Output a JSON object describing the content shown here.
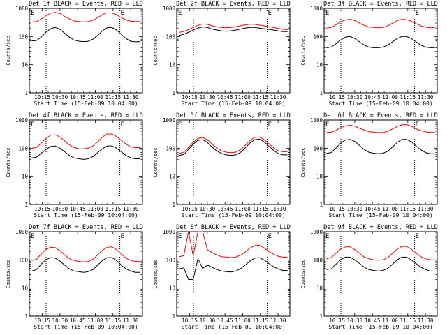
{
  "chart_data": [
    {
      "type": "line",
      "title": "Det 1f BLACK = Events, RED = LLD",
      "xlabel": "Start Time (15-Feb-09 10:04:00)",
      "ylabel": "Counts/sec",
      "x_ticks": [
        "10:15",
        "10:30",
        "10:45",
        "11:00",
        "11:15",
        "11:30"
      ],
      "y_ticks": [
        "1",
        "10",
        "100",
        "1000"
      ],
      "ylim": [
        1,
        1000
      ],
      "xlim": [
        "10:04",
        "11:40"
      ],
      "scale_y": "log",
      "annotations": [
        "E",
        "E"
      ],
      "series": [
        {
          "color": "#000000",
          "values": [
            70,
            72,
            95,
            140,
            190,
            210,
            180,
            130,
            95,
            75,
            68,
            66,
            68,
            80,
            110,
            160,
            205,
            210,
            170,
            120,
            85,
            68,
            65,
            66
          ]
        },
        {
          "color": "#ff0000",
          "values": [
            330,
            340,
            420,
            540,
            680,
            720,
            650,
            520,
            420,
            360,
            340,
            330,
            340,
            380,
            470,
            600,
            700,
            690,
            590,
            470,
            390,
            350,
            340,
            345
          ]
        }
      ]
    },
    {
      "type": "line",
      "title": "Det 2f BLACK = Events, RED = LLD",
      "xlabel": "Start Time (15-Feb-09 10:04:00)",
      "ylabel": "Counts/sec",
      "x_ticks": [
        "10:15",
        "10:30",
        "10:45",
        "11:00",
        "11:15",
        "11:30"
      ],
      "y_ticks": [
        "1",
        "10",
        "100",
        "1000"
      ],
      "ylim": [
        1,
        1000
      ],
      "xlim": [
        "10:04",
        "11:40"
      ],
      "scale_y": "log",
      "annotations": [
        "E",
        "E"
      ],
      "series": [
        {
          "color": "#000000",
          "values": [
            110,
            120,
            140,
            170,
            200,
            220,
            210,
            185,
            170,
            160,
            155,
            160,
            170,
            185,
            200,
            210,
            210,
            200,
            190,
            180,
            170,
            160,
            150,
            150
          ]
        },
        {
          "color": "#ff0000",
          "values": [
            140,
            150,
            175,
            210,
            250,
            280,
            270,
            240,
            220,
            210,
            205,
            210,
            220,
            240,
            260,
            275,
            270,
            255,
            240,
            225,
            210,
            195,
            180,
            175
          ]
        }
      ]
    },
    {
      "type": "line",
      "title": "Det 3f BLACK = Events, RED = LLD",
      "xlabel": "Start Time (15-Feb-09 10:04:00)",
      "ylabel": "Counts/sec",
      "x_ticks": [
        "10:15",
        "10:30",
        "10:45",
        "11:00",
        "11:15",
        "11:30"
      ],
      "y_ticks": [
        "1",
        "10",
        "100",
        "1000"
      ],
      "ylim": [
        1,
        1000
      ],
      "xlim": [
        "10:04",
        "11:40"
      ],
      "scale_y": "log",
      "annotations": [
        "E",
        "E"
      ],
      "series": [
        {
          "color": "#000000",
          "values": [
            40,
            42,
            55,
            75,
            95,
            100,
            85,
            65,
            50,
            42,
            40,
            40,
            42,
            50,
            65,
            85,
            100,
            100,
            85,
            65,
            50,
            42,
            40,
            40
          ]
        },
        {
          "color": "#ff0000",
          "values": [
            200,
            210,
            260,
            330,
            390,
            410,
            370,
            300,
            250,
            220,
            210,
            205,
            210,
            240,
            300,
            370,
            410,
            400,
            350,
            290,
            240,
            215,
            205,
            210
          ]
        }
      ]
    },
    {
      "type": "line",
      "title": "Det 4f BLACK = Events, RED = LLD",
      "xlabel": "Start Time (15-Feb-09 10:04:00)",
      "ylabel": "Counts/sec",
      "x_ticks": [
        "10:15",
        "10:30",
        "10:45",
        "11:00",
        "11:15",
        "11:30"
      ],
      "y_ticks": [
        "1",
        "10",
        "100",
        "1000"
      ],
      "ylim": [
        1,
        1000
      ],
      "xlim": [
        "10:04",
        "11:40"
      ],
      "scale_y": "log",
      "annotations": [
        "E",
        "E"
      ],
      "series": [
        {
          "color": "#000000",
          "values": [
            45,
            48,
            65,
            90,
            115,
            120,
            100,
            75,
            55,
            45,
            42,
            40,
            42,
            50,
            70,
            95,
            120,
            120,
            100,
            75,
            55,
            45,
            42,
            42
          ]
        },
        {
          "color": "#ff0000",
          "values": [
            100,
            105,
            150,
            220,
            290,
            300,
            250,
            180,
            130,
            105,
            95,
            95,
            100,
            120,
            170,
            250,
            320,
            320,
            260,
            190,
            140,
            110,
            105,
            105
          ]
        }
      ]
    },
    {
      "type": "line",
      "title": "Det 5f BLACK = Events, RED = LLD",
      "xlabel": "Start Time (15-Feb-09 10:04:00)",
      "ylabel": "Counts/sec",
      "x_ticks": [
        "10:15",
        "10:30",
        "10:45",
        "11:00",
        "11:15",
        "11:30"
      ],
      "y_ticks": [
        "1",
        "10",
        "100",
        "1000"
      ],
      "ylim": [
        1,
        1000
      ],
      "xlim": [
        "10:04",
        "11:40"
      ],
      "scale_y": "log",
      "annotations": [
        "E",
        "E"
      ],
      "series": [
        {
          "color": "#000000",
          "values": [
            55,
            60,
            90,
            140,
            190,
            200,
            160,
            110,
            80,
            65,
            58,
            55,
            58,
            70,
            100,
            150,
            200,
            210,
            170,
            120,
            85,
            65,
            58,
            58
          ]
        },
        {
          "color": "#ff0000",
          "values": [
            65,
            72,
            105,
            165,
            220,
            240,
            200,
            140,
            100,
            80,
            72,
            70,
            72,
            88,
            125,
            185,
            240,
            250,
            205,
            145,
            105,
            82,
            75,
            75
          ]
        }
      ]
    },
    {
      "type": "line",
      "title": "Det 6f BLACK = Events, RED = LLD",
      "xlabel": "Start Time (15-Feb-09 10:04:00)",
      "ylabel": "Counts/sec",
      "x_ticks": [
        "10:15",
        "10:30",
        "10:45",
        "11:00",
        "11:15",
        "11:30"
      ],
      "y_ticks": [
        "1",
        "10",
        "100",
        "1000"
      ],
      "ylim": [
        1,
        1000
      ],
      "xlim": [
        "10:04",
        "11:40"
      ],
      "scale_y": "log",
      "annotations": [
        "E",
        "E"
      ],
      "series": [
        {
          "color": "#000000",
          "values": [
            65,
            70,
            100,
            150,
            195,
            205,
            175,
            125,
            90,
            72,
            66,
            64,
            66,
            78,
            110,
            160,
            205,
            205,
            170,
            120,
            88,
            70,
            64,
            64
          ]
        },
        {
          "color": "#ff0000",
          "values": [
            360,
            370,
            430,
            530,
            620,
            650,
            600,
            510,
            440,
            390,
            370,
            360,
            365,
            400,
            480,
            590,
            680,
            690,
            600,
            490,
            420,
            380,
            365,
            365
          ]
        }
      ]
    },
    {
      "type": "line",
      "title": "Det 7f BLACK = Events, RED = LLD",
      "xlabel": "Start Time (15-Feb-09 10:04:00)",
      "ylabel": "Counts/sec",
      "x_ticks": [
        "10:15",
        "10:30",
        "10:45",
        "11:00",
        "11:15",
        "11:30"
      ],
      "y_ticks": [
        "1",
        "10",
        "100",
        "1000"
      ],
      "ylim": [
        1,
        1000
      ],
      "xlim": [
        "10:04",
        "11:40"
      ],
      "scale_y": "log",
      "annotations": [
        "E",
        "E"
      ],
      "series": [
        {
          "color": "#000000",
          "values": [
            40,
            45,
            70,
            100,
            120,
            115,
            90,
            65,
            48,
            40,
            38,
            36,
            38,
            45,
            65,
            95,
            120,
            120,
            95,
            65,
            48,
            40,
            36,
            36
          ]
        },
        {
          "color": "#ff0000",
          "values": [
            95,
            105,
            160,
            230,
            280,
            270,
            210,
            150,
            110,
            95,
            88,
            85,
            88,
            105,
            150,
            220,
            280,
            290,
            230,
            160,
            115,
            95,
            88,
            88
          ]
        }
      ]
    },
    {
      "type": "line",
      "title": "Det 8f BLACK = Events, RED = LLD",
      "xlabel": "Start Time (15-Feb-09 10:04:00)",
      "ylabel": "Counts/sec",
      "x_ticks": [
        "10:15",
        "10:30",
        "10:45",
        "11:00",
        "11:15",
        "11:30"
      ],
      "y_ticks": [
        "1",
        "10",
        "100",
        "1000"
      ],
      "ylim": [
        1,
        1000
      ],
      "xlim": [
        "10:04",
        "11:40"
      ],
      "scale_y": "log",
      "annotations": [
        "E",
        "E"
      ],
      "series": [
        {
          "color": "#000000",
          "values": [
            48,
            52,
            20,
            20,
            110,
            50,
            65,
            55,
            45,
            40,
            38,
            37,
            40,
            48,
            65,
            90,
            115,
            120,
            100,
            75,
            58,
            48,
            42,
            42
          ]
        },
        {
          "color": "#ff0000",
          "values": [
            130,
            140,
            1000,
            140,
            1000,
            1000,
            230,
            180,
            150,
            130,
            125,
            120,
            125,
            145,
            190,
            260,
            320,
            330,
            270,
            200,
            160,
            135,
            125,
            125
          ]
        }
      ]
    },
    {
      "type": "line",
      "title": "Det 9f BLACK = Events, RED = LLD",
      "xlabel": "Start Time (15-Feb-09 10:04:00)",
      "ylabel": "Counts/sec",
      "x_ticks": [
        "10:15",
        "10:30",
        "10:45",
        "11:00",
        "11:15",
        "11:30"
      ],
      "y_ticks": [
        "1",
        "10",
        "100",
        "1000"
      ],
      "ylim": [
        1,
        1000
      ],
      "xlim": [
        "10:04",
        "11:40"
      ],
      "scale_y": "log",
      "annotations": [
        "E",
        "E"
      ],
      "series": [
        {
          "color": "#000000",
          "values": [
            45,
            48,
            70,
            100,
            125,
            125,
            100,
            75,
            55,
            45,
            42,
            40,
            42,
            50,
            70,
            100,
            125,
            125,
            100,
            75,
            55,
            45,
            40,
            40
          ]
        },
        {
          "color": "#ff0000",
          "values": [
            110,
            120,
            170,
            240,
            290,
            290,
            230,
            170,
            125,
            110,
            100,
            98,
            100,
            120,
            170,
            240,
            300,
            300,
            240,
            175,
            130,
            110,
            100,
            100
          ]
        }
      ]
    }
  ]
}
